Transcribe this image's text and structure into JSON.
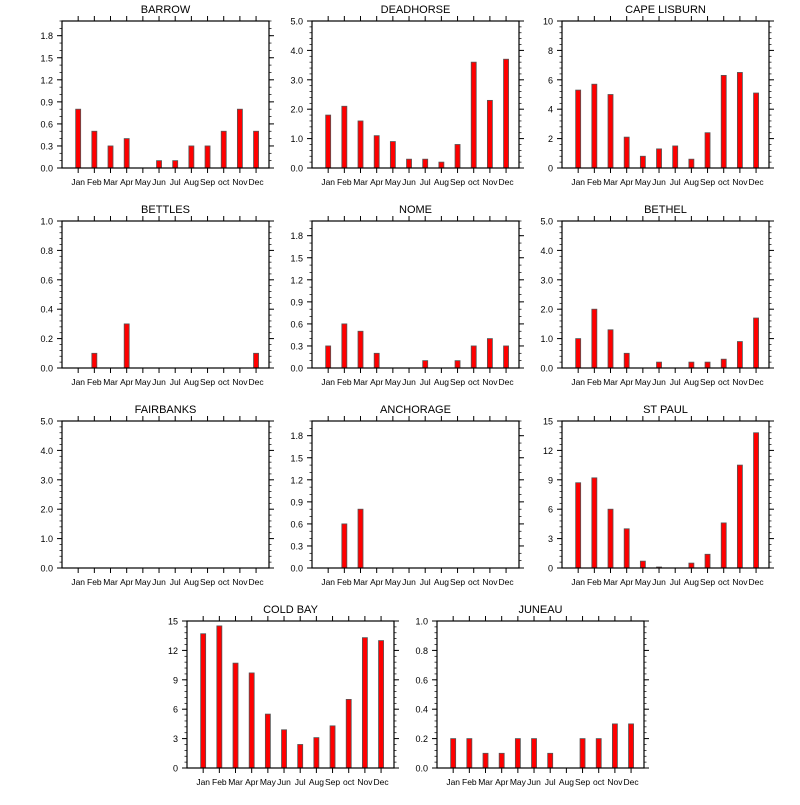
{
  "chart_data": [
    {
      "type": "bar",
      "title": "BARROW",
      "categories": [
        "Jan",
        "Feb",
        "Mar",
        "Apr",
        "May",
        "Jun",
        "Jul",
        "Aug",
        "Sep",
        "oct",
        "Nov",
        "Dec"
      ],
      "values": [
        0.8,
        0.5,
        0.3,
        0.4,
        0,
        0.1,
        0.1,
        0.3,
        0.3,
        0.5,
        0.8,
        0.5
      ],
      "ylim": [
        0,
        2.0
      ],
      "yticks": [
        0,
        0.3,
        0.6,
        0.9,
        1.2,
        1.5,
        1.8
      ],
      "ytick_labels": [
        "0.0",
        "0.3",
        "0.6",
        "0.9",
        "1.2",
        "1.5",
        "1.8"
      ],
      "yminor": 0.1,
      "xlabel": "",
      "ylabel": ""
    },
    {
      "type": "bar",
      "title": "DEADHORSE",
      "categories": [
        "Jan",
        "Feb",
        "Mar",
        "Apr",
        "May",
        "Jun",
        "Jul",
        "Aug",
        "Sep",
        "oct",
        "Nov",
        "Dec"
      ],
      "values": [
        1.8,
        2.1,
        1.6,
        1.1,
        0.9,
        0.3,
        0.3,
        0.2,
        0.8,
        3.6,
        2.3,
        3.7
      ],
      "ylim": [
        0,
        5.0
      ],
      "yticks": [
        0,
        1,
        2,
        3,
        4,
        5
      ],
      "ytick_labels": [
        "0.0",
        "1.0",
        "2.0",
        "3.0",
        "4.0",
        "5.0"
      ],
      "yminor": 0.2,
      "xlabel": "",
      "ylabel": ""
    },
    {
      "type": "bar",
      "title": "CAPE LISBURN",
      "categories": [
        "Jan",
        "Feb",
        "Mar",
        "Apr",
        "May",
        "Jun",
        "Jul",
        "Aug",
        "Sep",
        "oct",
        "Nov",
        "Dec"
      ],
      "values": [
        5.3,
        5.7,
        5.0,
        2.1,
        0.8,
        1.3,
        1.5,
        0.6,
        2.4,
        6.3,
        6.5,
        5.1
      ],
      "ylim": [
        0,
        10
      ],
      "yticks": [
        0,
        2,
        4,
        6,
        8,
        10
      ],
      "ytick_labels": [
        "0",
        "2",
        "4",
        "6",
        "8",
        "10"
      ],
      "yminor": 0.4,
      "xlabel": "",
      "ylabel": ""
    },
    {
      "type": "bar",
      "title": "BETTLES",
      "categories": [
        "Jan",
        "Feb",
        "Mar",
        "Apr",
        "May",
        "Jun",
        "Jul",
        "Aug",
        "Sep",
        "oct",
        "Nov",
        "Dec"
      ],
      "values": [
        0,
        0.1,
        0,
        0.3,
        0,
        0,
        0,
        0,
        0,
        0,
        0,
        0.1
      ],
      "ylim": [
        0,
        1.0
      ],
      "yticks": [
        0,
        0.2,
        0.4,
        0.6,
        0.8,
        1.0
      ],
      "ytick_labels": [
        "0.0",
        "0.2",
        "0.4",
        "0.6",
        "0.8",
        "1.0"
      ],
      "yminor": 0.04,
      "xlabel": "",
      "ylabel": ""
    },
    {
      "type": "bar",
      "title": "NOME",
      "categories": [
        "Jan",
        "Feb",
        "Mar",
        "Apr",
        "May",
        "Jun",
        "Jul",
        "Aug",
        "Sep",
        "oct",
        "Nov",
        "Dec"
      ],
      "values": [
        0.3,
        0.6,
        0.5,
        0.2,
        0,
        0,
        0.1,
        0,
        0.1,
        0.3,
        0.4,
        0.3
      ],
      "ylim": [
        0,
        2.0
      ],
      "yticks": [
        0,
        0.3,
        0.6,
        0.9,
        1.2,
        1.5,
        1.8
      ],
      "ytick_labels": [
        "0.0",
        "0.3",
        "0.6",
        "0.9",
        "1.2",
        "1.5",
        "1.8"
      ],
      "yminor": 0.1,
      "xlabel": "",
      "ylabel": ""
    },
    {
      "type": "bar",
      "title": "BETHEL",
      "categories": [
        "Jan",
        "Feb",
        "Mar",
        "Apr",
        "May",
        "Jun",
        "Jul",
        "Aug",
        "Sep",
        "oct",
        "Nov",
        "Dec"
      ],
      "values": [
        1.0,
        2.0,
        1.3,
        0.5,
        0,
        0.2,
        0,
        0.2,
        0.2,
        0.3,
        0.9,
        1.7
      ],
      "ylim": [
        0,
        5.0
      ],
      "yticks": [
        0,
        1,
        2,
        3,
        4,
        5
      ],
      "ytick_labels": [
        "0.0",
        "1.0",
        "2.0",
        "3.0",
        "4.0",
        "5.0"
      ],
      "yminor": 0.2,
      "xlabel": "",
      "ylabel": ""
    },
    {
      "type": "bar",
      "title": "FAIRBANKS",
      "categories": [
        "Jan",
        "Feb",
        "Mar",
        "Apr",
        "May",
        "Jun",
        "Jul",
        "Aug",
        "Sep",
        "oct",
        "Nov",
        "Dec"
      ],
      "values": [
        0,
        0,
        0,
        0,
        0,
        0,
        0,
        0,
        0,
        0,
        0,
        0
      ],
      "ylim": [
        0,
        5.0
      ],
      "yticks": [
        0,
        1,
        2,
        3,
        4,
        5
      ],
      "ytick_labels": [
        "0.0",
        "1.0",
        "2.0",
        "3.0",
        "4.0",
        "5.0"
      ],
      "yminor": 0.2,
      "xlabel": "",
      "ylabel": ""
    },
    {
      "type": "bar",
      "title": "ANCHORAGE",
      "categories": [
        "Jan",
        "Feb",
        "Mar",
        "Apr",
        "May",
        "Jun",
        "Jul",
        "Aug",
        "Sep",
        "oct",
        "Nov",
        "Dec"
      ],
      "values": [
        0,
        0.6,
        0.8,
        0,
        0,
        0,
        0,
        0,
        0,
        0,
        0,
        0
      ],
      "ylim": [
        0,
        2.0
      ],
      "yticks": [
        0,
        0.3,
        0.6,
        0.9,
        1.2,
        1.5,
        1.8
      ],
      "ytick_labels": [
        "0.0",
        "0.3",
        "0.6",
        "0.9",
        "1.2",
        "1.5",
        "1.8"
      ],
      "yminor": 0.1,
      "xlabel": "",
      "ylabel": ""
    },
    {
      "type": "bar",
      "title": "ST PAUL",
      "categories": [
        "Jan",
        "Feb",
        "Mar",
        "Apr",
        "May",
        "Jun",
        "Jul",
        "Aug",
        "Sep",
        "oct",
        "Nov",
        "Dec"
      ],
      "values": [
        8.7,
        9.2,
        6.0,
        4.0,
        0.7,
        0.1,
        0,
        0.5,
        1.4,
        4.6,
        10.5,
        13.8
      ],
      "ylim": [
        0,
        15
      ],
      "yticks": [
        0,
        3,
        6,
        9,
        12,
        15
      ],
      "ytick_labels": [
        "0",
        "3",
        "6",
        "9",
        "12",
        "15"
      ],
      "yminor": 0.6,
      "xlabel": "",
      "ylabel": ""
    },
    {
      "type": "bar",
      "title": "COLD BAY",
      "categories": [
        "Jan",
        "Feb",
        "Mar",
        "Apr",
        "May",
        "Jun",
        "Jul",
        "Aug",
        "Sep",
        "oct",
        "Nov",
        "Dec"
      ],
      "values": [
        13.7,
        14.5,
        10.7,
        9.7,
        5.5,
        3.9,
        2.4,
        3.1,
        4.3,
        7.0,
        13.3,
        13.0
      ],
      "ylim": [
        0,
        15
      ],
      "yticks": [
        0,
        3,
        6,
        9,
        12,
        15
      ],
      "ytick_labels": [
        "0",
        "3",
        "6",
        "9",
        "12",
        "15"
      ],
      "yminor": 0.6,
      "xlabel": "",
      "ylabel": ""
    },
    {
      "type": "bar",
      "title": "JUNEAU",
      "categories": [
        "Jan",
        "Feb",
        "Mar",
        "Apr",
        "May",
        "Jun",
        "Jul",
        "Aug",
        "Sep",
        "oct",
        "Nov",
        "Dec"
      ],
      "values": [
        0.2,
        0.2,
        0.1,
        0.1,
        0.2,
        0.2,
        0.1,
        0,
        0.2,
        0.2,
        0.3,
        0.3
      ],
      "ylim": [
        0,
        1.0
      ],
      "yticks": [
        0,
        0.2,
        0.4,
        0.6,
        0.8,
        1.0
      ],
      "ytick_labels": [
        "0.0",
        "0.2",
        "0.4",
        "0.6",
        "0.8",
        "1.0"
      ],
      "yminor": 0.04,
      "xlabel": "",
      "ylabel": ""
    }
  ],
  "style": {
    "bar_color": "#ff0000",
    "bar_edge": "#555555",
    "axis_color": "#000000"
  }
}
